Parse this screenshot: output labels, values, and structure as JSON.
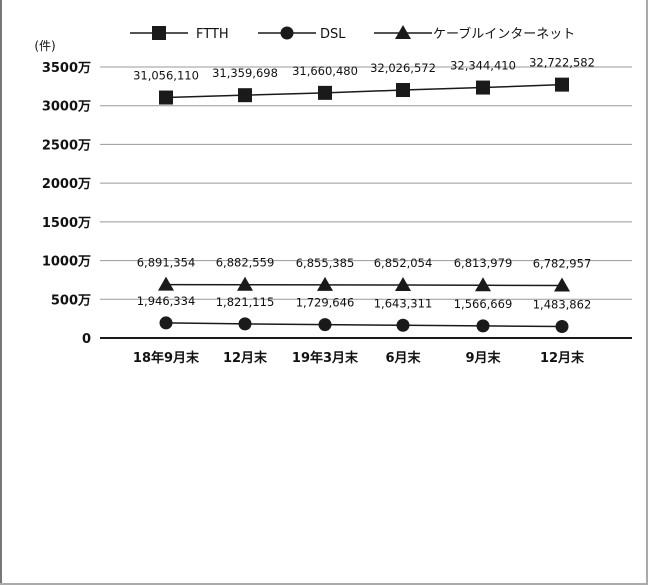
{
  "chart_data": {
    "type": "line",
    "ylabel": "(件)",
    "categories": [
      "18年9月末",
      "12月末",
      "19年3月末",
      "6月末",
      "9月末",
      "12月末"
    ],
    "ylim": [
      0,
      35000000
    ],
    "y_ticks": [
      {
        "value": 35000000,
        "label": "3500万"
      },
      {
        "value": 30000000,
        "label": "3000万"
      },
      {
        "value": 25000000,
        "label": "2500万"
      },
      {
        "value": 20000000,
        "label": "2000万"
      },
      {
        "value": 15000000,
        "label": "1500万"
      },
      {
        "value": 10000000,
        "label": "1000万"
      },
      {
        "value": 5000000,
        "label": "500万"
      },
      {
        "value": 0,
        "label": "0"
      }
    ],
    "grid": true,
    "legend_position": "top",
    "series": [
      {
        "name": "FTTH",
        "marker": "square",
        "values": [
          31056110,
          31359698,
          31660480,
          32026572,
          32344410,
          32722582
        ],
        "labels": [
          "31,056,110",
          "31,359,698",
          "31,660,480",
          "32,026,572",
          "32,344,410",
          "32,722,582"
        ]
      },
      {
        "name": "DSL",
        "marker": "circle",
        "values": [
          1946334,
          1821115,
          1729646,
          1643311,
          1566669,
          1483862
        ],
        "labels": [
          "1,946,334",
          "1,821,115",
          "1,729,646",
          "1,643,311",
          "1,566,669",
          "1,483,862"
        ]
      },
      {
        "name": "ケーブルインターネット",
        "marker": "triangle",
        "values": [
          6891354,
          6882559,
          6855385,
          6852054,
          6813979,
          6782957
        ],
        "labels": [
          "6,891,354",
          "6,882,559",
          "6,855,385",
          "6,852,054",
          "6,813,979",
          "6,782,957"
        ]
      }
    ],
    "colors": {
      "line": "#1a1a1a",
      "grid": "#999999",
      "text": "#111111"
    }
  }
}
